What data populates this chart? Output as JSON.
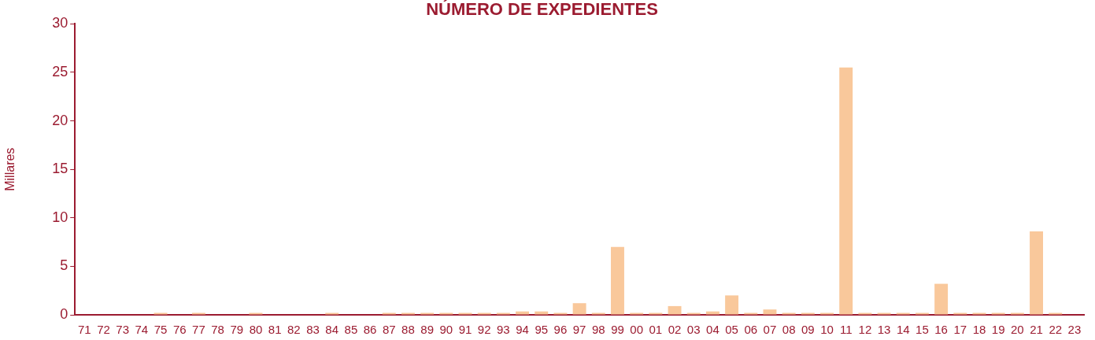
{
  "chart_data": {
    "type": "bar",
    "title": "NÚMERO DE EXPEDIENTES",
    "ylabel": "Millares",
    "categories": [
      "71",
      "72",
      "73",
      "74",
      "75",
      "76",
      "77",
      "78",
      "79",
      "80",
      "81",
      "82",
      "83",
      "84",
      "85",
      "86",
      "87",
      "88",
      "89",
      "90",
      "91",
      "92",
      "93",
      "94",
      "95",
      "96",
      "97",
      "98",
      "99",
      "00",
      "01",
      "02",
      "03",
      "04",
      "05",
      "06",
      "07",
      "08",
      "09",
      "10",
      "11",
      "12",
      "13",
      "14",
      "15",
      "16",
      "17",
      "18",
      "19",
      "20",
      "21",
      "22",
      "23"
    ],
    "values": [
      0,
      0,
      0,
      0,
      0.2,
      0,
      0.2,
      0,
      0,
      0.2,
      0,
      0,
      0,
      0.2,
      0,
      0,
      0.2,
      0.2,
      0.2,
      0.2,
      0.2,
      0.2,
      0.2,
      0.35,
      0.35,
      0.2,
      1.2,
      0.2,
      7,
      0.2,
      0.2,
      0.9,
      0.2,
      0.35,
      2,
      0.2,
      0.55,
      0.2,
      0.2,
      0.2,
      25.5,
      0.2,
      0.2,
      0.2,
      0.2,
      3.2,
      0.2,
      0.2,
      0.2,
      0.2,
      8.6,
      0.2,
      0
    ],
    "color": "#f9c89b",
    "ylim": [
      0,
      30
    ],
    "yticks": [
      0,
      5,
      10,
      15,
      20,
      25,
      30
    ],
    "grid": false,
    "legend": false
  }
}
